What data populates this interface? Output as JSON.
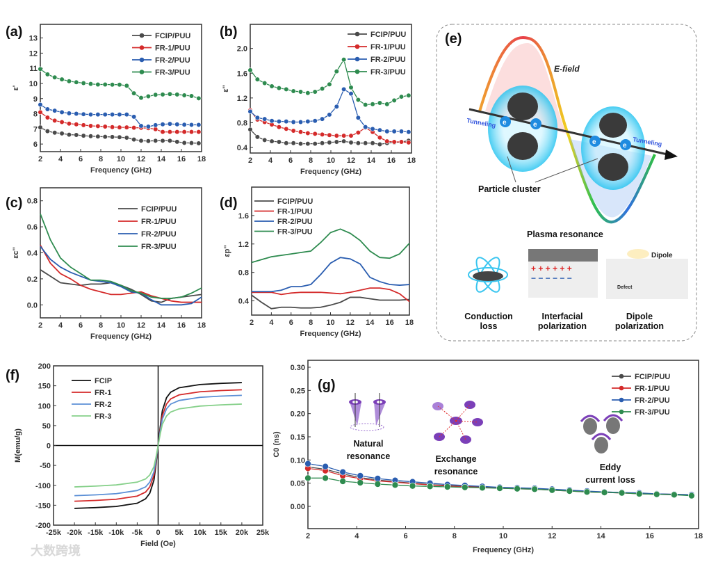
{
  "colors": {
    "FCIP": "#4a4a4a",
    "FR1": "#d42a2a",
    "FR2": "#2a5db0",
    "FR3": "#2e8b4f",
    "FR2_light": "#5b8fd6",
    "FR3_light": "#86d08a",
    "black": "#111111"
  },
  "panel_labels": {
    "a": "(a)",
    "b": "(b)",
    "c": "(c)",
    "d": "(d)",
    "e": "(e)",
    "f": "(f)",
    "g": "(g)"
  },
  "watermark": "大数跨境",
  "chart_data": [
    {
      "id": "a",
      "type": "line",
      "markers": true,
      "title": "",
      "xlabel": "Frequency (GHz)",
      "ylabel": "ε'",
      "xlim": [
        2,
        18
      ],
      "ylim": [
        5.5,
        13.9
      ],
      "xticks": [
        2,
        4,
        6,
        8,
        10,
        12,
        14,
        16,
        18
      ],
      "xtick_labels": [
        "2",
        "4",
        "6",
        "8",
        "10",
        "12",
        "14",
        "16",
        "18"
      ],
      "yticks": [
        6,
        7,
        8,
        9,
        10,
        11,
        12,
        13
      ],
      "ytick_labels": [
        "6",
        "7",
        "8",
        "9",
        "10",
        "11",
        "12",
        "13"
      ],
      "legend_position": "top-right",
      "x": [
        2,
        2.714,
        3.429,
        4.143,
        4.857,
        5.571,
        6.286,
        7,
        7.714,
        8.429,
        9.143,
        9.857,
        10.571,
        11.286,
        12,
        12.714,
        13.429,
        14.143,
        14.857,
        15.571,
        16.286,
        17,
        17.714
      ],
      "series": [
        {
          "name": "FCIP/PUU",
          "color_key": "FCIP",
          "values": [
            7.1,
            6.85,
            6.75,
            6.7,
            6.62,
            6.6,
            6.55,
            6.52,
            6.5,
            6.48,
            6.47,
            6.45,
            6.42,
            6.3,
            6.22,
            6.2,
            6.22,
            6.22,
            6.22,
            6.15,
            6.08,
            6.07,
            6.05
          ]
        },
        {
          "name": "FR-1/PUU",
          "color_key": "FR1",
          "values": [
            8.1,
            7.75,
            7.55,
            7.45,
            7.35,
            7.3,
            7.25,
            7.2,
            7.18,
            7.15,
            7.12,
            7.1,
            7.1,
            7.08,
            7.07,
            7.05,
            6.98,
            6.8,
            6.8,
            6.8,
            6.8,
            6.8,
            6.8
          ]
        },
        {
          "name": "FR-2/PUU",
          "color_key": "FR2",
          "values": [
            8.6,
            8.3,
            8.2,
            8.1,
            8.03,
            8.0,
            7.97,
            7.95,
            7.95,
            7.95,
            7.95,
            7.95,
            7.95,
            7.8,
            7.2,
            7.15,
            7.25,
            7.3,
            7.33,
            7.3,
            7.28,
            7.27,
            7.27
          ]
        },
        {
          "name": "FR-3/PUU",
          "color_key": "FR3",
          "values": [
            10.95,
            10.6,
            10.4,
            10.27,
            10.15,
            10.08,
            10.02,
            9.97,
            9.93,
            9.93,
            9.92,
            9.92,
            9.85,
            9.35,
            9.05,
            9.15,
            9.25,
            9.27,
            9.3,
            9.27,
            9.22,
            9.17,
            9.02
          ]
        }
      ]
    },
    {
      "id": "b",
      "type": "line",
      "markers": true,
      "title": "",
      "xlabel": "Frequency (GHz)",
      "ylabel": "ε''",
      "xlim": [
        2,
        18
      ],
      "ylim": [
        0.31,
        2.39
      ],
      "xticks": [
        2,
        4,
        6,
        8,
        10,
        12,
        14,
        16,
        18
      ],
      "xtick_labels": [
        "2",
        "4",
        "6",
        "8",
        "10",
        "12",
        "14",
        "16",
        "18"
      ],
      "yticks": [
        0.4,
        0.8,
        1.2,
        1.6,
        2.0
      ],
      "ytick_labels": [
        "0.4",
        "0.8",
        "1.2",
        "1.6",
        "2.0"
      ],
      "legend_position": "top-right",
      "x": [
        2,
        2.714,
        3.429,
        4.143,
        4.857,
        5.571,
        6.286,
        7,
        7.714,
        8.429,
        9.143,
        9.857,
        10.571,
        11.286,
        12,
        12.714,
        13.429,
        14.143,
        14.857,
        15.571,
        16.286,
        17,
        17.714
      ],
      "series": [
        {
          "name": "FCIP/PUU",
          "color_key": "FCIP",
          "values": [
            0.69,
            0.57,
            0.52,
            0.5,
            0.49,
            0.47,
            0.47,
            0.46,
            0.46,
            0.46,
            0.47,
            0.48,
            0.49,
            0.5,
            0.48,
            0.47,
            0.47,
            0.47,
            0.45,
            0.47,
            0.48,
            0.49,
            0.51
          ]
        },
        {
          "name": "FR-1/PUU",
          "color_key": "FR1",
          "values": [
            1.0,
            0.85,
            0.81,
            0.77,
            0.73,
            0.7,
            0.67,
            0.65,
            0.63,
            0.62,
            0.61,
            0.6,
            0.59,
            0.59,
            0.59,
            0.64,
            0.72,
            0.65,
            0.56,
            0.5,
            0.49,
            0.49,
            0.48
          ]
        },
        {
          "name": "FR-2/PUU",
          "color_key": "FR2",
          "values": [
            0.98,
            0.88,
            0.86,
            0.83,
            0.82,
            0.82,
            0.81,
            0.81,
            0.82,
            0.83,
            0.86,
            0.93,
            1.06,
            1.34,
            1.27,
            0.88,
            0.73,
            0.7,
            0.68,
            0.66,
            0.66,
            0.66,
            0.65
          ]
        },
        {
          "name": "FR-3/PUU",
          "color_key": "FR3",
          "values": [
            1.65,
            1.5,
            1.44,
            1.39,
            1.36,
            1.34,
            1.31,
            1.3,
            1.28,
            1.3,
            1.35,
            1.42,
            1.63,
            1.82,
            1.37,
            1.17,
            1.09,
            1.1,
            1.12,
            1.1,
            1.16,
            1.22,
            1.24
          ]
        }
      ]
    },
    {
      "id": "c",
      "type": "line",
      "markers": false,
      "title": "",
      "xlabel": "Frequency (GHz)",
      "ylabel": "εc''",
      "xlim": [
        2,
        18
      ],
      "ylim": [
        -0.1,
        0.9
      ],
      "xticks": [
        2,
        4,
        6,
        8,
        10,
        12,
        14,
        16,
        18
      ],
      "xtick_labels": [
        "2",
        "4",
        "6",
        "8",
        "10",
        "12",
        "14",
        "16",
        "18"
      ],
      "yticks": [
        0.0,
        0.2,
        0.4,
        0.6,
        0.8
      ],
      "ytick_labels": [
        "0.0",
        "0.2",
        "0.4",
        "0.6",
        "0.8"
      ],
      "legend_position": "top-right",
      "x": [
        2,
        3,
        4,
        5,
        6,
        7,
        8,
        9,
        10,
        11,
        12,
        13,
        14,
        15,
        16,
        17,
        18
      ],
      "series": [
        {
          "name": "FCIP/PUU",
          "color_key": "FCIP",
          "values": [
            0.27,
            0.22,
            0.17,
            0.16,
            0.15,
            0.16,
            0.16,
            0.17,
            0.15,
            0.12,
            0.08,
            0.03,
            0.02,
            0.05,
            0.06,
            0.07,
            0.08
          ]
        },
        {
          "name": "FR-1/PUU",
          "color_key": "FR1",
          "values": [
            0.46,
            0.32,
            0.24,
            0.2,
            0.15,
            0.12,
            0.1,
            0.08,
            0.08,
            0.09,
            0.1,
            0.07,
            0.05,
            0.03,
            0.02,
            0.02,
            0.02
          ]
        },
        {
          "name": "FR-2/PUU",
          "color_key": "FR2",
          "values": [
            0.45,
            0.35,
            0.29,
            0.25,
            0.22,
            0.19,
            0.18,
            0.17,
            0.14,
            0.1,
            0.09,
            0.04,
            0.0,
            0.0,
            0.0,
            0.01,
            0.06
          ]
        },
        {
          "name": "FR-3/PUU",
          "color_key": "FR3",
          "values": [
            0.7,
            0.5,
            0.36,
            0.29,
            0.24,
            0.19,
            0.19,
            0.18,
            0.15,
            0.11,
            0.09,
            0.06,
            0.05,
            0.05,
            0.06,
            0.09,
            0.13
          ]
        }
      ]
    },
    {
      "id": "d",
      "type": "line",
      "markers": false,
      "title": "",
      "xlabel": "Frequency (GHz)",
      "ylabel": "εp''",
      "xlim": [
        2,
        18
      ],
      "ylim": [
        0.2,
        2.0
      ],
      "xticks": [
        2,
        4,
        6,
        8,
        10,
        12,
        14,
        16,
        18
      ],
      "xtick_labels": [
        "2",
        "4",
        "6",
        "8",
        "10",
        "12",
        "14",
        "16",
        "18"
      ],
      "yticks": [
        0.4,
        0.8,
        1.2,
        1.6
      ],
      "ytick_labels": [
        "0.4",
        "0.8",
        "1.2",
        "1.6"
      ],
      "legend_position": "top-left",
      "x": [
        2,
        3,
        4,
        5,
        6,
        7,
        8,
        9,
        10,
        11,
        12,
        13,
        14,
        15,
        16,
        17,
        18
      ],
      "series": [
        {
          "name": "FCIP/PUU",
          "color_key": "FCIP",
          "values": [
            0.48,
            0.38,
            0.29,
            0.31,
            0.31,
            0.3,
            0.3,
            0.31,
            0.34,
            0.38,
            0.45,
            0.45,
            0.43,
            0.41,
            0.41,
            0.41,
            0.42
          ]
        },
        {
          "name": "FR-1/PUU",
          "color_key": "FR1",
          "values": [
            0.52,
            0.52,
            0.52,
            0.49,
            0.51,
            0.52,
            0.52,
            0.52,
            0.51,
            0.5,
            0.52,
            0.55,
            0.58,
            0.58,
            0.56,
            0.5,
            0.39
          ]
        },
        {
          "name": "FR-2/PUU",
          "color_key": "FR2",
          "values": [
            0.53,
            0.53,
            0.53,
            0.55,
            0.6,
            0.6,
            0.63,
            0.77,
            0.93,
            1.01,
            0.99,
            0.92,
            0.73,
            0.67,
            0.63,
            0.62,
            0.63
          ]
        },
        {
          "name": "FR-3/PUU",
          "color_key": "FR3",
          "values": [
            0.94,
            0.98,
            1.02,
            1.04,
            1.06,
            1.08,
            1.1,
            1.22,
            1.36,
            1.41,
            1.35,
            1.25,
            1.1,
            1.01,
            1.0,
            1.06,
            1.21
          ]
        }
      ]
    },
    {
      "id": "f",
      "type": "line",
      "markers": false,
      "title": "",
      "zero_lines": true,
      "xlabel": "Field (Oe)",
      "ylabel": "M(emu/g)",
      "xlim": [
        -25000,
        25000
      ],
      "ylim": [
        -200,
        200
      ],
      "xticks": [
        -25000,
        -20000,
        -15000,
        -10000,
        -5000,
        0,
        5000,
        10000,
        15000,
        20000,
        25000
      ],
      "xtick_labels": [
        "-25k",
        "-20k",
        "-15k",
        "-10k",
        "-5k",
        "0",
        "5k",
        "10k",
        "15k",
        "20k",
        "25k"
      ],
      "yticks": [
        -200,
        -150,
        -100,
        -50,
        0,
        50,
        100,
        150,
        200
      ],
      "ytick_labels": [
        "-200",
        "-150",
        "-100",
        "-50",
        "0",
        "50",
        "100",
        "150",
        "200"
      ],
      "legend_position": "top-left",
      "x": [
        -20000,
        -15000,
        -10000,
        -5000,
        -3000,
        -2000,
        -1000,
        -500,
        0,
        500,
        1000,
        2000,
        3000,
        5000,
        10000,
        15000,
        20000
      ],
      "series": [
        {
          "name": "FCIP",
          "color_key": "black",
          "values": [
            -158,
            -156,
            -153,
            -145,
            -134,
            -120,
            -87,
            -47,
            0,
            47,
            87,
            120,
            134,
            145,
            153,
            156,
            158
          ]
        },
        {
          "name": "FR-1",
          "color_key": "FR1",
          "values": [
            -140,
            -138,
            -135,
            -127,
            -117,
            -104,
            -75,
            -40,
            0,
            40,
            75,
            104,
            117,
            127,
            135,
            138,
            140
          ]
        },
        {
          "name": "FR-2",
          "color_key": "FR2_light",
          "values": [
            -126,
            -124,
            -121,
            -113,
            -104,
            -92,
            -66,
            -36,
            0,
            36,
            66,
            92,
            104,
            113,
            121,
            124,
            126
          ]
        },
        {
          "name": "FR-3",
          "color_key": "FR3_light",
          "values": [
            -104,
            -102,
            -99,
            -92,
            -84,
            -74,
            -53,
            -29,
            0,
            29,
            53,
            74,
            84,
            92,
            99,
            102,
            104
          ]
        }
      ]
    },
    {
      "id": "g",
      "type": "line",
      "markers": true,
      "title": "",
      "xlabel": "Frequency (GHz)",
      "ylabel": "C0 (ns)",
      "xlim": [
        2,
        18
      ],
      "ylim": [
        -0.048,
        0.315
      ],
      "xticks": [
        2,
        4,
        6,
        8,
        10,
        12,
        14,
        16,
        18
      ],
      "xtick_labels": [
        "2",
        "4",
        "6",
        "8",
        "10",
        "12",
        "14",
        "16",
        "18"
      ],
      "yticks": [
        0,
        0.05,
        0.1,
        0.15,
        0.2,
        0.25,
        0.3
      ],
      "ytick_labels": [
        "0.00",
        "0.05",
        "0.10",
        "0.15",
        "0.20",
        "0.25",
        "0.30"
      ],
      "legend_position": "top-right",
      "annotations": [
        "Natural",
        "resonance",
        "Exchange",
        "resonance",
        "Eddy",
        "current loss"
      ],
      "x": [
        2,
        2.714,
        3.429,
        4.143,
        4.857,
        5.571,
        6.286,
        7,
        7.714,
        8.429,
        9.143,
        9.857,
        10.571,
        11.286,
        12,
        12.714,
        13.429,
        14.143,
        14.857,
        15.571,
        16.286,
        17,
        17.714
      ],
      "series": [
        {
          "name": "FCIP/PUU",
          "color_key": "FCIP",
          "values": [
            0.085,
            0.08,
            0.07,
            0.062,
            0.057,
            0.053,
            0.05,
            0.047,
            0.045,
            0.043,
            0.042,
            0.04,
            0.039,
            0.038,
            0.036,
            0.034,
            0.032,
            0.031,
            0.03,
            0.028,
            0.027,
            0.026,
            0.025
          ]
        },
        {
          "name": "FR-1/PUU",
          "color_key": "FR1",
          "values": [
            0.082,
            0.077,
            0.066,
            0.06,
            0.055,
            0.052,
            0.049,
            0.046,
            0.044,
            0.042,
            0.041,
            0.039,
            0.038,
            0.037,
            0.035,
            0.033,
            0.031,
            0.03,
            0.029,
            0.027,
            0.026,
            0.025,
            0.024
          ]
        },
        {
          "name": "FR-2/PUU",
          "color_key": "FR2",
          "values": [
            0.092,
            0.086,
            0.074,
            0.066,
            0.06,
            0.056,
            0.053,
            0.05,
            0.047,
            0.045,
            0.043,
            0.041,
            0.04,
            0.039,
            0.037,
            0.035,
            0.033,
            0.031,
            0.03,
            0.029,
            0.027,
            0.026,
            0.025
          ]
        },
        {
          "name": "FR-3/PUU",
          "color_key": "FR3",
          "values": [
            0.061,
            0.061,
            0.054,
            0.051,
            0.048,
            0.046,
            0.044,
            0.043,
            0.042,
            0.041,
            0.04,
            0.039,
            0.038,
            0.037,
            0.035,
            0.033,
            0.031,
            0.03,
            0.029,
            0.027,
            0.026,
            0.025,
            0.023
          ]
        }
      ]
    }
  ],
  "diagram": {
    "e_field": "E-field",
    "tunneling_left": "Tunneling",
    "tunneling_right": "Tunneling",
    "electron": "e",
    "particle_cluster": "Particle cluster",
    "plasma_resonance": "Plasma resonance",
    "dipole": "Dipole",
    "defect": "Defect",
    "conduction": [
      "Conduction",
      "loss"
    ],
    "interfacial": [
      "Interfacial",
      "polarization"
    ],
    "dipole_pol": [
      "Dipole",
      "polarization"
    ]
  }
}
